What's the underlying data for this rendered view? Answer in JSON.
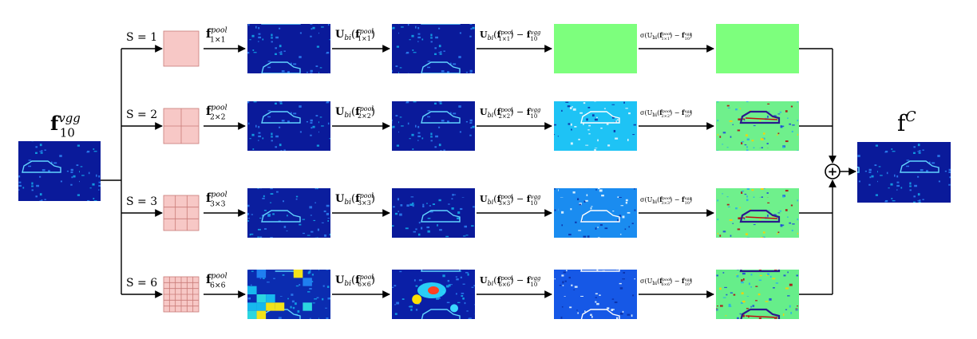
{
  "input": {
    "label": "f",
    "sup": "vgg",
    "sub": "10"
  },
  "output": {
    "label": "f",
    "sup": "C"
  },
  "rows": [
    {
      "scale_label": "S = 1",
      "grid": 1,
      "pool_label": "f",
      "pool_sup": "pool",
      "pool_sub": "1×1",
      "up_label": "U",
      "up_sub": "bi",
      "up_arg_sub": "1×1",
      "diff_tail": "f",
      "diff_tail_sup": "vgg",
      "diff_tail_sub": "10",
      "sig_label": "σ(U",
      "sig_sub": "1×1",
      "maps": [
        "heat-dark",
        "heat-dark",
        "green-solid",
        "green-solid"
      ]
    },
    {
      "scale_label": "S = 2",
      "grid": 2,
      "pool_label": "f",
      "pool_sup": "pool",
      "pool_sub": "2×2",
      "up_label": "U",
      "up_sub": "bi",
      "up_arg_sub": "2×2",
      "diff_tail": "f",
      "diff_tail_sup": "vgg",
      "diff_tail_sub": "10",
      "sig_label": "σ(U",
      "sig_sub": "2×2",
      "maps": [
        "heat-dark",
        "heat-dark",
        "cyan-edge",
        "green-noisy"
      ]
    },
    {
      "scale_label": "S = 3",
      "grid": 3,
      "pool_label": "f",
      "pool_sup": "pool",
      "pool_sub": "3×3",
      "up_label": "U",
      "up_sub": "bi",
      "up_arg_sub": "3×3",
      "diff_tail": "f",
      "diff_tail_sup": "vgg",
      "diff_tail_sub": "10",
      "sig_label": "σ(U",
      "sig_sub": "3×3",
      "maps": [
        "heat-block",
        "heat-blur",
        "blue-edge",
        "green-noisy"
      ]
    },
    {
      "scale_label": "S = 6",
      "grid": 6,
      "pool_label": "f",
      "pool_sup": "pool",
      "pool_sub": "6×6",
      "up_label": "U",
      "up_sub": "bi",
      "up_arg_sub": "6×6",
      "diff_tail": "f",
      "diff_tail_sup": "vgg",
      "diff_tail_sub": "10",
      "sig_label": "σ(U",
      "sig_sub": "6×6",
      "maps": [
        "heat-coarse",
        "heat-smooth",
        "blue-deep",
        "green-strong"
      ]
    }
  ],
  "sum_symbol": "+",
  "colors": {
    "grid_fill": "#f7c8c6",
    "grid_line": "#c97b78",
    "green": "#7dff7d",
    "dark_blue": "#00008b"
  }
}
